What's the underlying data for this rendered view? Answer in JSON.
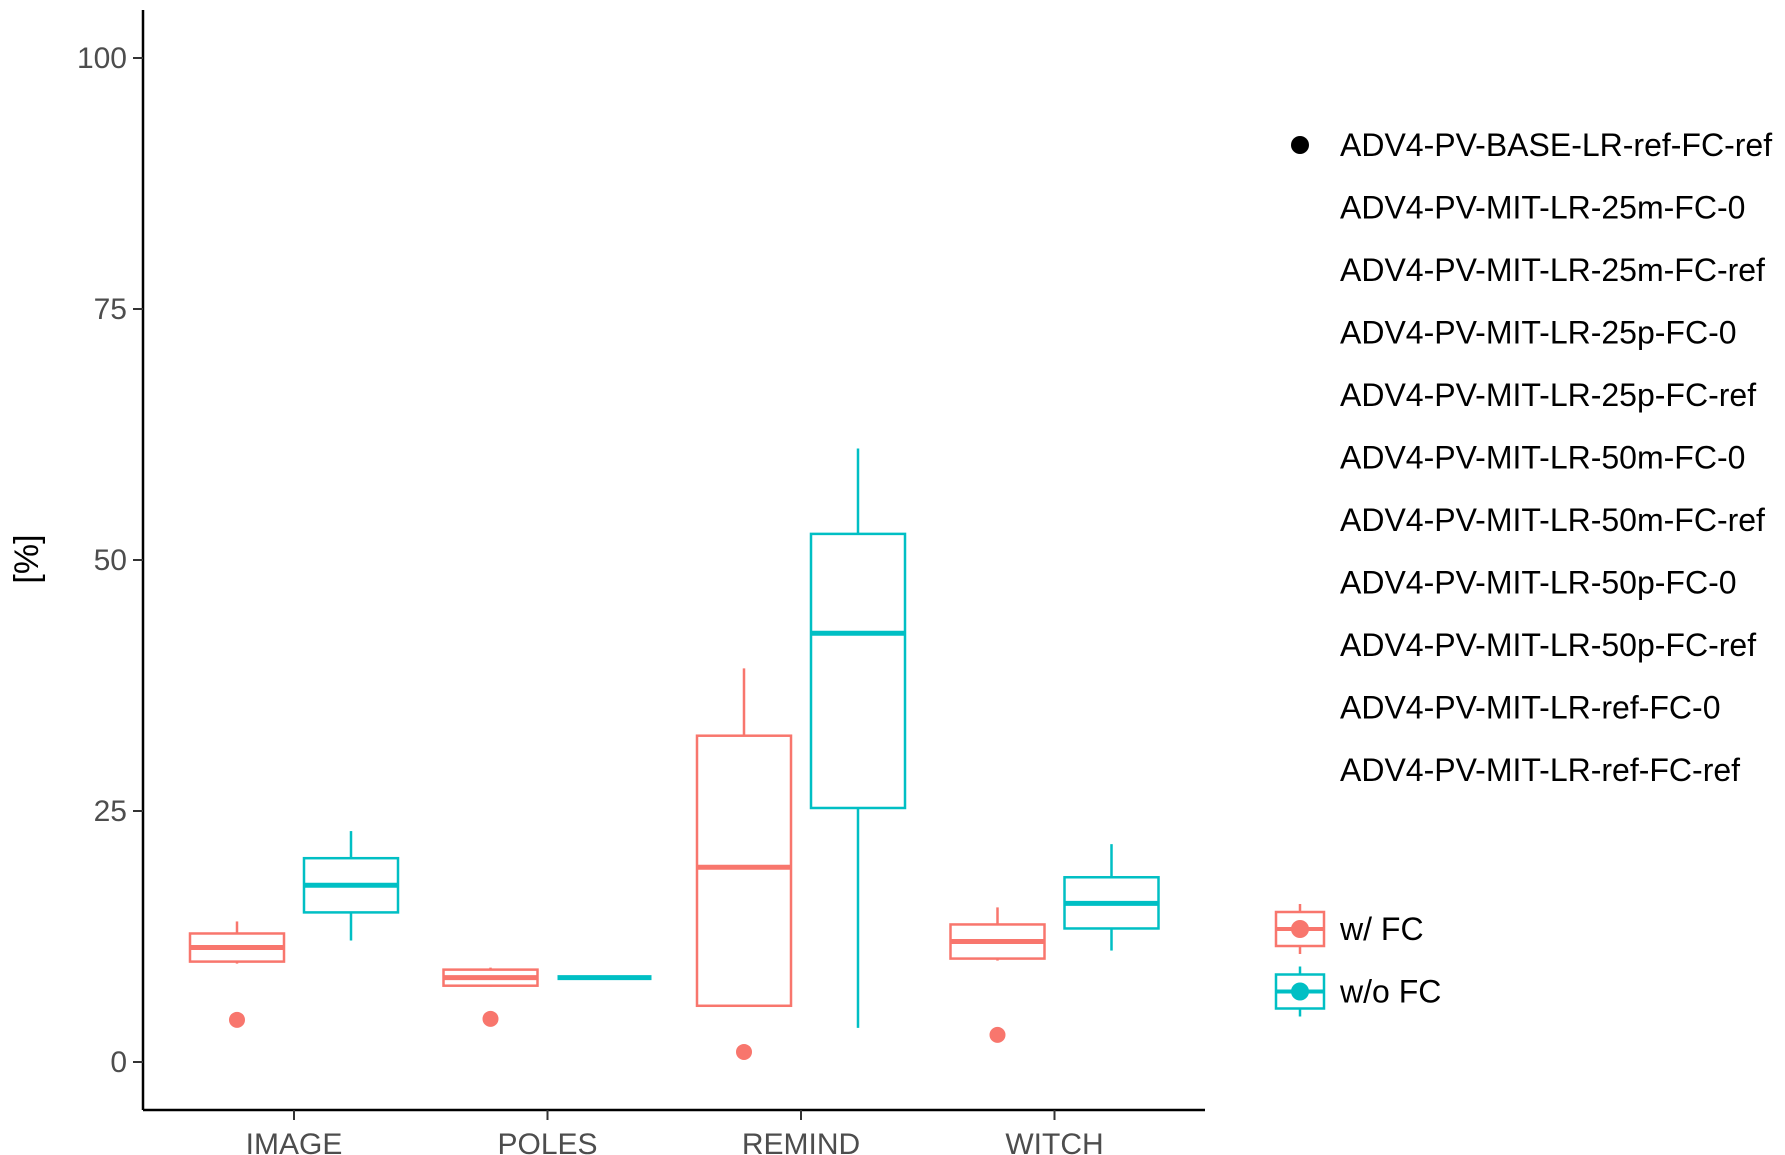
{
  "chart_data": {
    "type": "box",
    "title": "",
    "xlabel": "",
    "ylabel": "[%]",
    "ylim": [
      -4,
      105
    ],
    "yticks": [
      0,
      25,
      50,
      75,
      100
    ],
    "categories": [
      "IMAGE",
      "POLES",
      "REMIND",
      "WITCH"
    ],
    "grid": false,
    "series": [
      {
        "name": "w/ FC",
        "color": "#F8766D",
        "boxes": [
          {
            "category": "IMAGE",
            "min": 9.8,
            "q1": 10.0,
            "median": 11.4,
            "q3": 12.8,
            "max": 14.0,
            "outliers": [
              4.2
            ]
          },
          {
            "category": "POLES",
            "min": 7.5,
            "q1": 7.6,
            "median": 8.4,
            "q3": 9.2,
            "max": 9.4,
            "outliers": [
              4.3
            ]
          },
          {
            "category": "REMIND",
            "min": 5.6,
            "q1": 5.6,
            "median": 19.4,
            "q3": 32.5,
            "max": 39.2,
            "outliers": [
              1.0
            ]
          },
          {
            "category": "WITCH",
            "min": 10.1,
            "q1": 10.3,
            "median": 12.0,
            "q3": 13.7,
            "max": 15.4,
            "outliers": [
              2.7
            ]
          }
        ]
      },
      {
        "name": "w/o FC",
        "color": "#00BFC4",
        "boxes": [
          {
            "category": "IMAGE",
            "min": 12.1,
            "q1": 14.9,
            "median": 17.6,
            "q3": 20.3,
            "max": 23.0,
            "outliers": []
          },
          {
            "category": "POLES",
            "min": 8.4,
            "q1": 8.4,
            "median": 8.4,
            "q3": 8.4,
            "max": 8.4,
            "outliers": []
          },
          {
            "category": "REMIND",
            "min": 3.4,
            "q1": 25.3,
            "median": 42.7,
            "q3": 52.6,
            "max": 61.1,
            "outliers": []
          },
          {
            "category": "WITCH",
            "min": 11.1,
            "q1": 13.3,
            "median": 15.8,
            "q3": 18.4,
            "max": 21.7,
            "outliers": []
          }
        ]
      }
    ],
    "shape_legend": [
      {
        "label": "ADV4-PV-BASE-LR-ref-FC-ref",
        "marker": "filled-circle"
      },
      {
        "label": "ADV4-PV-MIT-LR-25m-FC-0",
        "marker": "none"
      },
      {
        "label": "ADV4-PV-MIT-LR-25m-FC-ref",
        "marker": "none"
      },
      {
        "label": "ADV4-PV-MIT-LR-25p-FC-0",
        "marker": "none"
      },
      {
        "label": "ADV4-PV-MIT-LR-25p-FC-ref",
        "marker": "none"
      },
      {
        "label": "ADV4-PV-MIT-LR-50m-FC-0",
        "marker": "none"
      },
      {
        "label": "ADV4-PV-MIT-LR-50m-FC-ref",
        "marker": "none"
      },
      {
        "label": "ADV4-PV-MIT-LR-50p-FC-0",
        "marker": "none"
      },
      {
        "label": "ADV4-PV-MIT-LR-50p-FC-ref",
        "marker": "none"
      },
      {
        "label": "ADV4-PV-MIT-LR-ref-FC-0",
        "marker": "none"
      },
      {
        "label": "ADV4-PV-MIT-LR-ref-FC-ref",
        "marker": "none"
      }
    ],
    "legend_position": "right"
  }
}
